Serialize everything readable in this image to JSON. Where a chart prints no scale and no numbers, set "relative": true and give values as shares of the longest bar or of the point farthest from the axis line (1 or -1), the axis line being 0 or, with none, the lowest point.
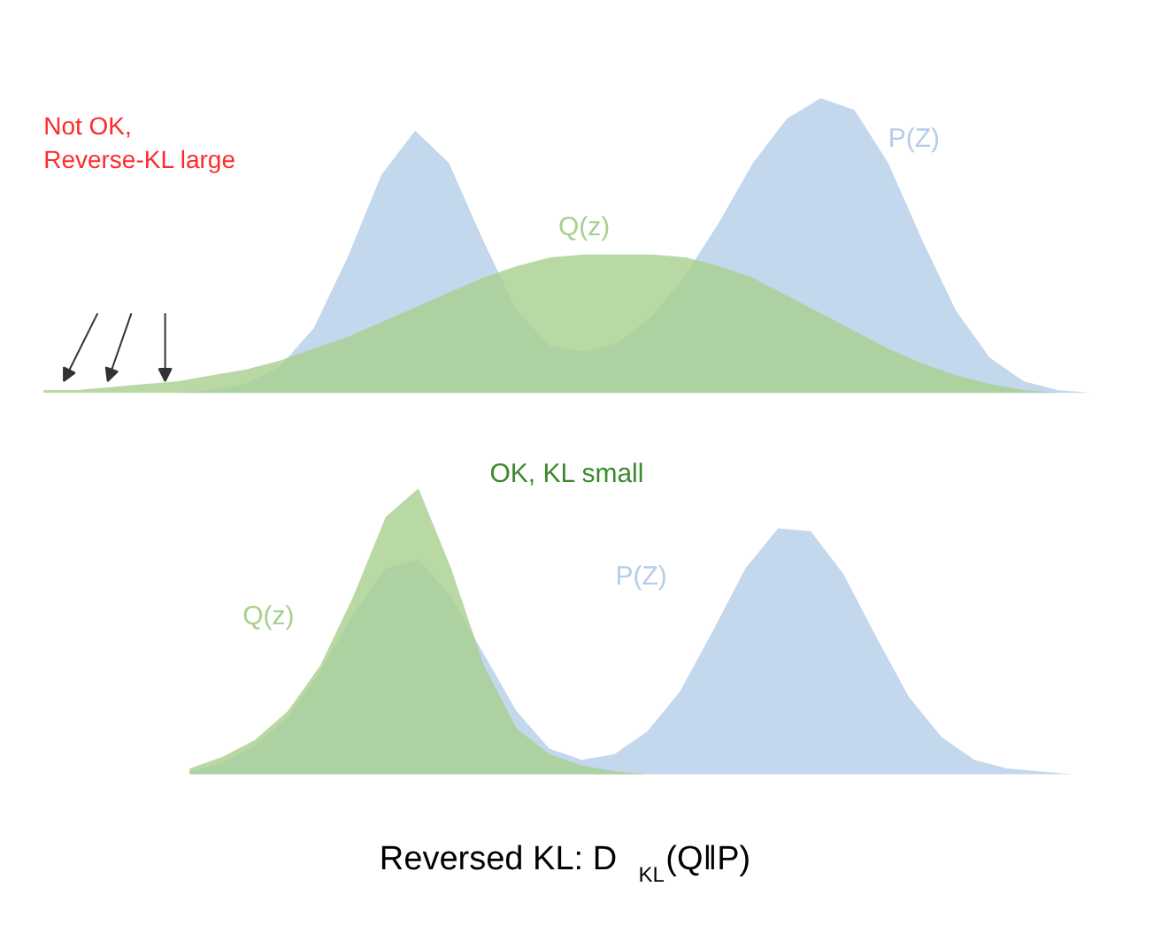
{
  "chart_data": [
    {
      "type": "area",
      "relative": true,
      "grid": false,
      "legend": false,
      "categories": [
        null,
        null,
        null,
        null,
        null,
        null,
        null,
        null,
        null,
        null,
        null,
        null,
        null,
        null,
        null,
        null,
        null,
        null,
        null,
        null,
        null,
        null,
        null,
        null,
        null,
        null,
        null,
        null,
        null,
        null,
        null,
        null
      ],
      "series": [
        {
          "name": "P(Z)",
          "color": "#b4cde8",
          "values": [
            0,
            0,
            0,
            0,
            0,
            0.01,
            0.03,
            0.09,
            0.22,
            0.46,
            0.74,
            0.89,
            0.78,
            0.52,
            0.28,
            0.16,
            0.14,
            0.17,
            0.26,
            0.4,
            0.58,
            0.78,
            0.93,
            1.0,
            0.96,
            0.78,
            0.52,
            0.28,
            0.12,
            0.04,
            0.01,
            0
          ]
        },
        {
          "name": "Q(z)",
          "color": "#a8d08d",
          "values": [
            0.01,
            0.01,
            0.02,
            0.03,
            0.04,
            0.06,
            0.08,
            0.11,
            0.15,
            0.19,
            0.24,
            0.29,
            0.34,
            0.39,
            0.43,
            0.46,
            0.47,
            0.47,
            0.47,
            0.46,
            0.43,
            0.39,
            0.33,
            0.27,
            0.21,
            0.15,
            0.1,
            0.06,
            0.03,
            0.01,
            0,
            0
          ]
        }
      ],
      "annotations": [
        "Not OK,\nReverse-KL large"
      ]
    },
    {
      "type": "area",
      "relative": true,
      "grid": false,
      "legend": false,
      "categories": [
        null,
        null,
        null,
        null,
        null,
        null,
        null,
        null,
        null,
        null,
        null,
        null,
        null,
        null,
        null,
        null,
        null,
        null,
        null,
        null,
        null,
        null,
        null,
        null,
        null,
        null,
        null,
        null
      ],
      "series": [
        {
          "name": "P(Z)",
          "color": "#b4cde8",
          "values": [
            0.01,
            0.04,
            0.1,
            0.2,
            0.36,
            0.56,
            0.72,
            0.75,
            0.62,
            0.42,
            0.22,
            0.09,
            0.05,
            0.07,
            0.15,
            0.29,
            0.5,
            0.72,
            0.86,
            0.85,
            0.7,
            0.48,
            0.27,
            0.13,
            0.05,
            0.02,
            0.01,
            0
          ]
        },
        {
          "name": "Q(z)",
          "color": "#a8d08d",
          "values": [
            0.02,
            0.06,
            0.12,
            0.22,
            0.38,
            0.62,
            0.9,
            1.0,
            0.72,
            0.38,
            0.16,
            0.07,
            0.03,
            0.01,
            0,
            0,
            0,
            0,
            0,
            0,
            0,
            0,
            0,
            0,
            0,
            0,
            0,
            0
          ]
        }
      ],
      "annotations": [
        "OK, KL small",
        "Reversed KL: D$_{KL}$(Q‖P)"
      ]
    }
  ]
}
